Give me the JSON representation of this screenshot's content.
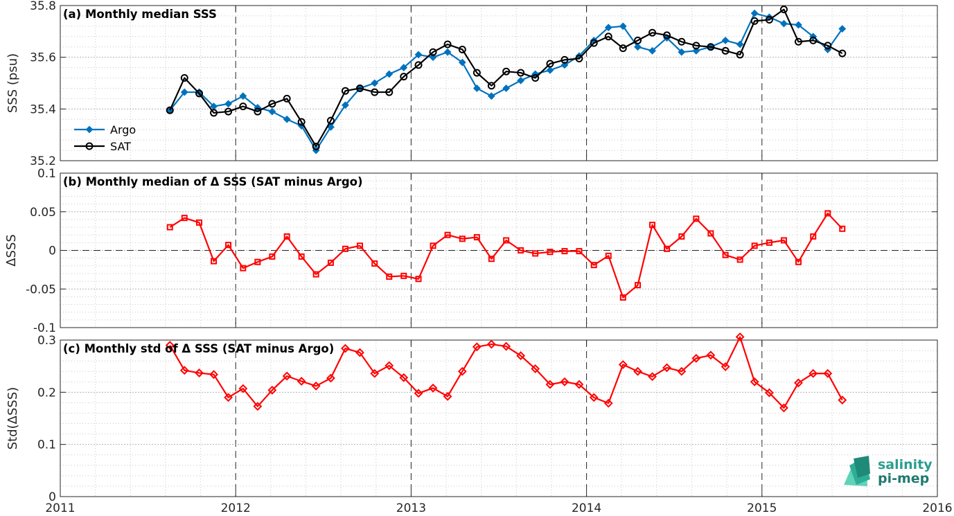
{
  "chart_data": [
    {
      "type": "line",
      "title": "(a) Monthly median SSS",
      "ylabel": "SSS (psu)",
      "xlim": [
        2011,
        2016
      ],
      "ylim": [
        35.2,
        35.8
      ],
      "yticks": [
        "35.2",
        "35.4",
        "35.6",
        "35.8"
      ],
      "grid": true,
      "legend_placement": "bottom-left",
      "x": [
        2011.625,
        2011.708,
        2011.792,
        2011.875,
        2011.958,
        2012.042,
        2012.125,
        2012.208,
        2012.292,
        2012.375,
        2012.458,
        2012.542,
        2012.625,
        2012.708,
        2012.792,
        2012.875,
        2012.958,
        2013.042,
        2013.125,
        2013.208,
        2013.292,
        2013.375,
        2013.458,
        2013.542,
        2013.625,
        2013.708,
        2013.792,
        2013.875,
        2013.958,
        2014.042,
        2014.125,
        2014.208,
        2014.292,
        2014.375,
        2014.458,
        2014.542,
        2014.625,
        2014.708,
        2014.792,
        2014.875,
        2014.958,
        2015.042,
        2015.125,
        2015.208,
        2015.292,
        2015.375,
        2015.458
      ],
      "series": [
        {
          "name": "Argo",
          "color": "#0072BD",
          "marker": "diamond",
          "values": [
            35.395,
            35.465,
            35.465,
            35.41,
            35.42,
            35.45,
            35.405,
            35.39,
            35.36,
            35.335,
            35.24,
            35.33,
            35.415,
            35.48,
            35.5,
            35.535,
            35.56,
            35.61,
            35.6,
            35.62,
            35.58,
            35.48,
            35.45,
            35.48,
            35.51,
            35.535,
            35.55,
            35.57,
            35.605,
            35.665,
            35.715,
            35.72,
            35.64,
            35.625,
            35.675,
            35.62,
            35.625,
            35.64,
            35.665,
            35.65,
            35.77,
            35.755,
            35.73,
            35.725,
            35.68,
            35.63,
            35.71
          ]
        },
        {
          "name": "SAT",
          "color": "#000000",
          "marker": "circle",
          "values": [
            35.395,
            35.52,
            35.46,
            35.385,
            35.39,
            35.41,
            35.39,
            35.42,
            35.44,
            35.35,
            35.255,
            35.355,
            35.47,
            35.48,
            35.465,
            35.465,
            35.525,
            35.57,
            35.62,
            35.65,
            35.63,
            35.54,
            35.49,
            35.545,
            35.54,
            35.52,
            35.575,
            35.59,
            35.595,
            35.655,
            35.68,
            35.635,
            35.665,
            35.695,
            35.685,
            35.66,
            35.645,
            35.64,
            35.625,
            35.61,
            35.74,
            35.745,
            35.785,
            35.66,
            35.665,
            35.645,
            35.615
          ]
        }
      ]
    },
    {
      "type": "line",
      "title": "(b) Monthly median of Δ SSS (SAT minus Argo)",
      "ylabel": "ΔSSS",
      "xlim": [
        2011,
        2016
      ],
      "ylim": [
        -0.1,
        0.1
      ],
      "yticks": [
        "-0.1",
        "-0.05",
        "0",
        "0.05",
        "0.1"
      ],
      "grid": true,
      "zero_line": "dashed",
      "x": [
        2011.625,
        2011.708,
        2011.792,
        2011.875,
        2011.958,
        2012.042,
        2012.125,
        2012.208,
        2012.292,
        2012.375,
        2012.458,
        2012.542,
        2012.625,
        2012.708,
        2012.792,
        2012.875,
        2012.958,
        2013.042,
        2013.125,
        2013.208,
        2013.292,
        2013.375,
        2013.458,
        2013.542,
        2013.625,
        2013.708,
        2013.792,
        2013.875,
        2013.958,
        2014.042,
        2014.125,
        2014.208,
        2014.292,
        2014.375,
        2014.458,
        2014.542,
        2014.625,
        2014.708,
        2014.792,
        2014.875,
        2014.958,
        2015.042,
        2015.125,
        2015.208,
        2015.292,
        2015.375,
        2015.458
      ],
      "series": [
        {
          "color": "#FF0000",
          "marker": "square",
          "values": [
            0.03,
            0.042,
            0.036,
            -0.014,
            0.007,
            -0.023,
            -0.015,
            -0.008,
            0.018,
            -0.008,
            -0.031,
            -0.016,
            0.002,
            0.006,
            -0.017,
            -0.034,
            -0.033,
            -0.037,
            0.006,
            0.02,
            0.015,
            0.017,
            -0.011,
            0.013,
            0.0,
            -0.004,
            -0.002,
            -0.001,
            -0.001,
            -0.019,
            -0.007,
            -0.061,
            -0.045,
            0.033,
            0.002,
            0.018,
            0.041,
            0.022,
            -0.006,
            -0.012,
            0.006,
            0.01,
            0.013,
            -0.015,
            0.018,
            0.048,
            0.028
          ]
        }
      ]
    },
    {
      "type": "line",
      "title": "(c) Monthly std of Δ SSS (SAT minus Argo)",
      "ylabel": "Std(ΔSSS)",
      "xlabel": "",
      "xlim": [
        2011,
        2016
      ],
      "ylim": [
        0,
        0.3
      ],
      "xticks": [
        "2011",
        "2012",
        "2013",
        "2014",
        "2015",
        "2016"
      ],
      "yticks": [
        "0",
        "0.1",
        "0.2",
        "0.3"
      ],
      "grid": true,
      "x": [
        2011.625,
        2011.708,
        2011.792,
        2011.875,
        2011.958,
        2012.042,
        2012.125,
        2012.208,
        2012.292,
        2012.375,
        2012.458,
        2012.542,
        2012.625,
        2012.708,
        2012.792,
        2012.875,
        2012.958,
        2013.042,
        2013.125,
        2013.208,
        2013.292,
        2013.375,
        2013.458,
        2013.542,
        2013.625,
        2013.708,
        2013.792,
        2013.875,
        2013.958,
        2014.042,
        2014.125,
        2014.208,
        2014.292,
        2014.375,
        2014.458,
        2014.542,
        2014.625,
        2014.708,
        2014.792,
        2014.875,
        2014.958,
        2015.042,
        2015.125,
        2015.208,
        2015.292,
        2015.375,
        2015.458
      ],
      "series": [
        {
          "color": "#FF0000",
          "marker": "diamond",
          "values": [
            0.29,
            0.242,
            0.237,
            0.234,
            0.19,
            0.207,
            0.173,
            0.204,
            0.231,
            0.221,
            0.212,
            0.227,
            0.284,
            0.276,
            0.236,
            0.251,
            0.228,
            0.198,
            0.208,
            0.192,
            0.24,
            0.287,
            0.292,
            0.288,
            0.27,
            0.245,
            0.215,
            0.22,
            0.215,
            0.19,
            0.179,
            0.253,
            0.24,
            0.23,
            0.247,
            0.24,
            0.265,
            0.271,
            0.249,
            0.306,
            0.22,
            0.199,
            0.17,
            0.218,
            0.236,
            0.236,
            0.185
          ]
        }
      ]
    }
  ],
  "logo": {
    "line1": "salinity",
    "line2": "pi-mep"
  }
}
